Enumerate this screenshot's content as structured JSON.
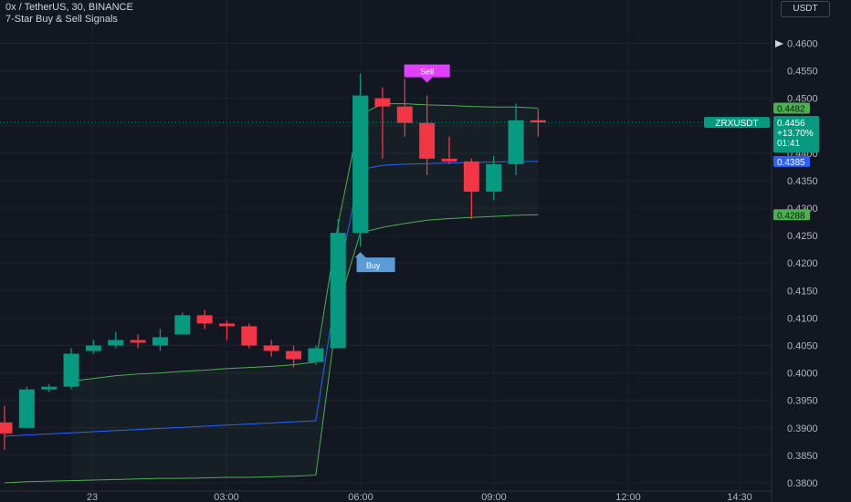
{
  "header": {
    "symbol_line": "0x / TetherUS, 30, BINANCE",
    "indicator_name": "7-Star Buy & Sell Signals"
  },
  "currency_button": "USDT",
  "colors": {
    "background": "#131722",
    "up": "#089981",
    "down": "#f23645",
    "grid": "#1e222d",
    "axis_text": "#b2b5be",
    "band": "#4caf50",
    "midline": "#2962ff",
    "sell_label": "#e040fb",
    "buy_label": "#5b9cd6"
  },
  "chart_data": {
    "type": "candlestick",
    "symbol": "ZRXUSDT",
    "timeframe": "30",
    "exchange": "BINANCE",
    "y_ticks": [
      "0.4600",
      "0.4550",
      "0.4500",
      "0.4450",
      "0.4400",
      "0.4350",
      "0.4300",
      "0.4250",
      "0.4200",
      "0.4150",
      "0.4100",
      "0.4050",
      "0.4000",
      "0.3950",
      "0.3900",
      "0.3850",
      "0.3800"
    ],
    "ylim": [
      0.3795,
      0.4634
    ],
    "x_ticks": [
      "23",
      "03:00",
      "06:00",
      "09:00",
      "12:00",
      "14:30"
    ],
    "candles": [
      {
        "o": 0.391,
        "h": 0.394,
        "l": 0.386,
        "c": 0.389
      },
      {
        "o": 0.39,
        "h": 0.3975,
        "l": 0.39,
        "c": 0.397
      },
      {
        "o": 0.397,
        "h": 0.398,
        "l": 0.3965,
        "c": 0.3975
      },
      {
        "o": 0.3975,
        "h": 0.4045,
        "l": 0.397,
        "c": 0.4035
      },
      {
        "o": 0.404,
        "h": 0.406,
        "l": 0.4035,
        "c": 0.405
      },
      {
        "o": 0.405,
        "h": 0.4075,
        "l": 0.4045,
        "c": 0.406
      },
      {
        "o": 0.406,
        "h": 0.407,
        "l": 0.4045,
        "c": 0.4055
      },
      {
        "o": 0.405,
        "h": 0.408,
        "l": 0.404,
        "c": 0.4065
      },
      {
        "o": 0.407,
        "h": 0.411,
        "l": 0.407,
        "c": 0.4105
      },
      {
        "o": 0.4105,
        "h": 0.4115,
        "l": 0.408,
        "c": 0.409
      },
      {
        "o": 0.409,
        "h": 0.4095,
        "l": 0.406,
        "c": 0.4085
      },
      {
        "o": 0.4085,
        "h": 0.409,
        "l": 0.4045,
        "c": 0.405
      },
      {
        "o": 0.405,
        "h": 0.406,
        "l": 0.403,
        "c": 0.404
      },
      {
        "o": 0.404,
        "h": 0.405,
        "l": 0.401,
        "c": 0.4025
      },
      {
        "o": 0.402,
        "h": 0.405,
        "l": 0.4015,
        "c": 0.4045
      },
      {
        "o": 0.4045,
        "h": 0.428,
        "l": 0.4045,
        "c": 0.4255
      },
      {
        "o": 0.4255,
        "h": 0.4545,
        "l": 0.423,
        "c": 0.4505
      },
      {
        "o": 0.45,
        "h": 0.452,
        "l": 0.439,
        "c": 0.4485
      },
      {
        "o": 0.4485,
        "h": 0.4535,
        "l": 0.443,
        "c": 0.4455
      },
      {
        "o": 0.4455,
        "h": 0.4505,
        "l": 0.436,
        "c": 0.439
      },
      {
        "o": 0.439,
        "h": 0.443,
        "l": 0.438,
        "c": 0.4385
      },
      {
        "o": 0.4385,
        "h": 0.439,
        "l": 0.428,
        "c": 0.433
      },
      {
        "o": 0.433,
        "h": 0.4395,
        "l": 0.4315,
        "c": 0.438
      },
      {
        "o": 0.438,
        "h": 0.449,
        "l": 0.436,
        "c": 0.446
      },
      {
        "o": 0.446,
        "h": 0.448,
        "l": 0.443,
        "c": 0.4456
      }
    ],
    "band_upper": [
      null,
      null,
      null,
      0.3985,
      0.399,
      0.3995,
      0.3998,
      0.4,
      0.4003,
      0.4005,
      0.4008,
      0.401,
      0.4012,
      0.4015,
      0.402,
      0.427,
      0.447,
      0.449,
      0.449,
      0.4488,
      0.4487,
      0.4485,
      0.4484,
      0.4484,
      0.4482
    ],
    "band_lower": [
      0.38,
      0.3802,
      0.3803,
      0.3804,
      0.3805,
      0.3806,
      0.3807,
      0.3808,
      0.3808,
      0.3809,
      0.381,
      0.381,
      0.3811,
      0.3812,
      0.3814,
      0.412,
      0.4255,
      0.4265,
      0.4272,
      0.4278,
      0.4281,
      0.4283,
      0.4285,
      0.4287,
      0.4288
    ],
    "midline": [
      0.3885,
      0.3887,
      0.3889,
      0.3891,
      0.3893,
      0.3895,
      0.3897,
      0.3899,
      0.3901,
      0.3903,
      0.3905,
      0.3907,
      0.3909,
      0.3911,
      0.3913,
      0.417,
      0.437,
      0.4378,
      0.438,
      0.4381,
      0.4382,
      0.4383,
      0.4384,
      0.4385,
      0.4385
    ],
    "signals": [
      {
        "type": "Buy",
        "label": "Buy",
        "candle": 16
      },
      {
        "type": "Sell",
        "label": "Sell",
        "candle": 19
      }
    ],
    "price_labels": {
      "last_symbol": "ZRXUSDT",
      "last_price": "0.4456",
      "last_change": "+13.70%",
      "countdown": "01:41",
      "band_upper": "0.4482",
      "midline": "0.4385",
      "band_lower": "0.4288"
    }
  }
}
